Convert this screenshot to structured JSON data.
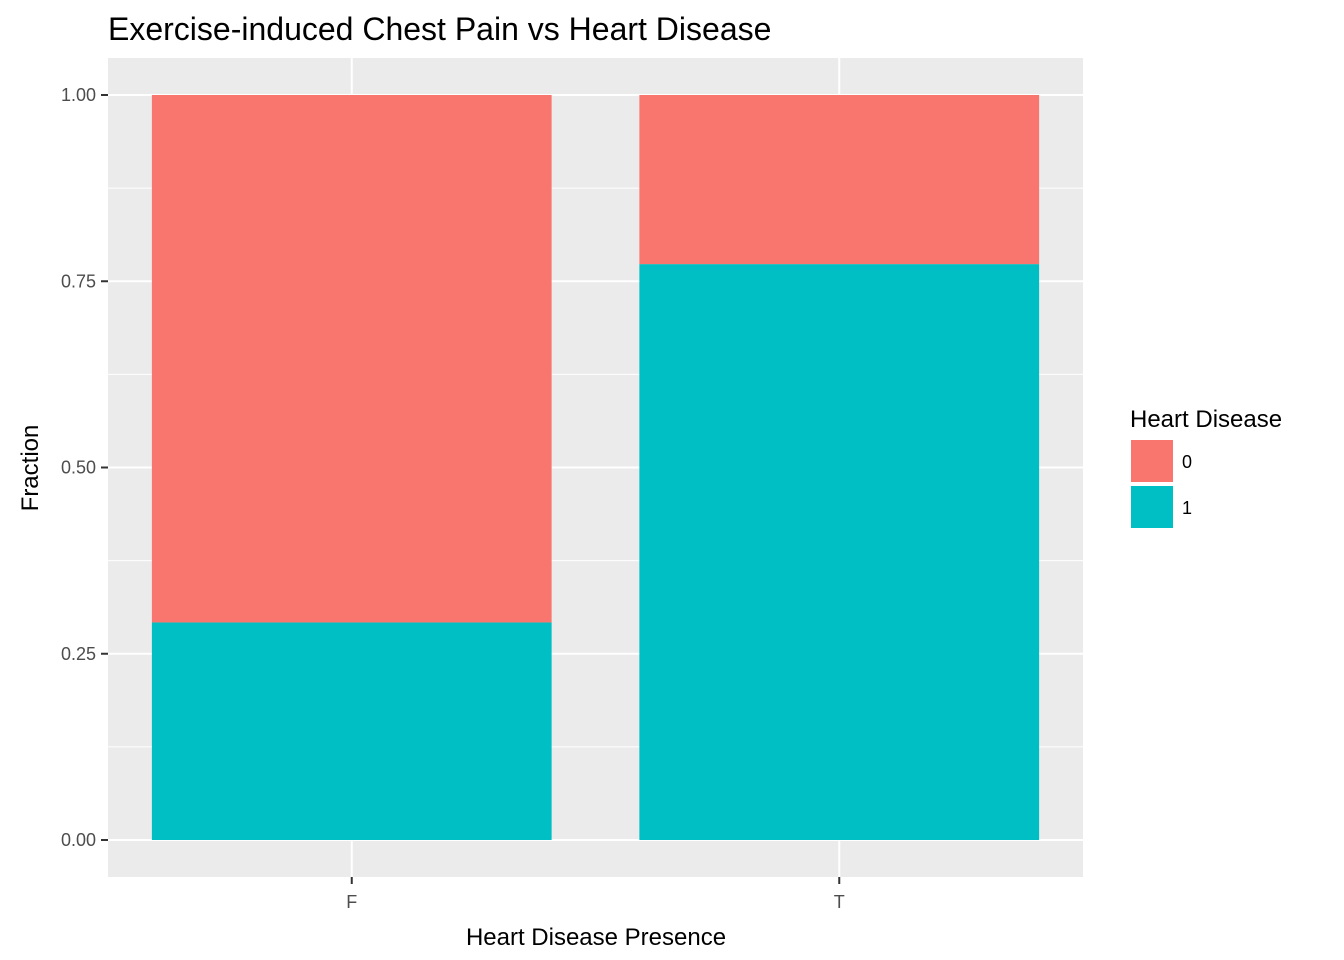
{
  "chart_data": {
    "type": "bar",
    "stacked": true,
    "normalized": true,
    "title": "Exercise-induced Chest Pain vs Heart Disease",
    "xlabel": "Heart Disease Presence",
    "ylabel": "Fraction",
    "categories": [
      "F",
      "T"
    ],
    "ylim": [
      0,
      1
    ],
    "yticks": [
      0,
      0.25,
      0.5,
      0.75,
      1
    ],
    "ytick_labels": [
      "0.00",
      "0.25",
      "0.50",
      "0.75",
      "1.00"
    ],
    "series": [
      {
        "name": "0",
        "color": "#F8766D",
        "values": [
          0.708,
          0.227
        ]
      },
      {
        "name": "1",
        "color": "#00BFC4",
        "values": [
          0.292,
          0.773
        ]
      }
    ],
    "legend": {
      "title": "Heart Disease",
      "position": "right"
    },
    "grid": true,
    "panel_background": "#EBEBEB",
    "grid_color": "#FFFFFF"
  }
}
